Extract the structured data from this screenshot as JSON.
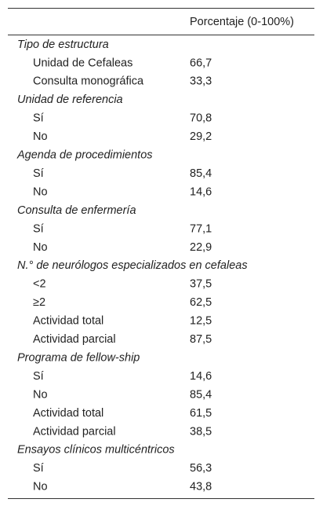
{
  "table": {
    "header": "Porcentaje (0-100%)",
    "sections": [
      {
        "title": "Tipo de estructura",
        "rows": [
          [
            "Unidad de Cefaleas",
            "66,7"
          ],
          [
            "Consulta monográfica",
            "33,3"
          ]
        ]
      },
      {
        "title": "Unidad de referencia",
        "rows": [
          [
            "Sí",
            "70,8"
          ],
          [
            "No",
            "29,2"
          ]
        ]
      },
      {
        "title": "Agenda de procedimientos",
        "rows": [
          [
            "Sí",
            "85,4"
          ],
          [
            "No",
            "14,6"
          ]
        ]
      },
      {
        "title": "Consulta de enfermería",
        "rows": [
          [
            "Sí",
            "77,1"
          ],
          [
            "No",
            "22,9"
          ]
        ]
      },
      {
        "title": "N.° de neurólogos especializados en cefaleas",
        "rows": [
          [
            "<2",
            "37,5"
          ],
          [
            "≥2",
            "62,5"
          ],
          [
            "Actividad total",
            "12,5"
          ],
          [
            "Actividad parcial",
            "87,5"
          ]
        ]
      },
      {
        "title": "Programa de fellow-ship",
        "rows": [
          [
            "Sí",
            "14,6"
          ],
          [
            "No",
            "85,4"
          ],
          [
            "Actividad total",
            "61,5"
          ],
          [
            "Actividad parcial",
            "38,5"
          ]
        ]
      },
      {
        "title": "Ensayos clínicos multicéntricos",
        "rows": [
          [
            "Sí",
            "56,3"
          ],
          [
            "No",
            "43,8"
          ]
        ]
      }
    ]
  }
}
